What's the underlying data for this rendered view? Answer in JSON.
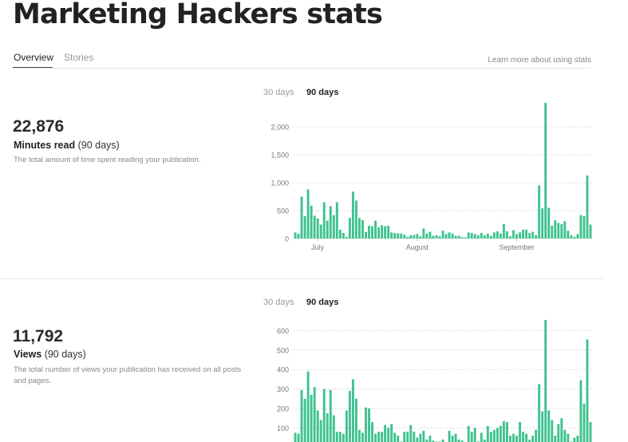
{
  "page": {
    "title": "Marketing Hackers stats"
  },
  "tabs": {
    "overview": "Overview",
    "stories": "Stories",
    "active": "Overview"
  },
  "learn_more": "Learn more about using stats",
  "range_options": {
    "d30": "30 days",
    "d90": "90 days",
    "selected": "90 days"
  },
  "colors": {
    "bar": "#3ec28f",
    "grid": "#d0d0d0",
    "axis_text": "#777777"
  },
  "sections": {
    "minutes": {
      "value": "22,876",
      "label": "Minutes read",
      "period": " (90 days)",
      "description": "The total amount of time spent reading your publication."
    },
    "views": {
      "value": "11,792",
      "label": "Views",
      "period": " (90 days)",
      "description": "The total number of views your publication has received on all posts and pages."
    }
  },
  "chart_data": [
    {
      "type": "bar",
      "title": "",
      "xlabel": "",
      "ylabel": "",
      "ylim": [
        0,
        2400
      ],
      "yticks": [
        0,
        500,
        1000,
        1500,
        2000
      ],
      "ytick_labels": [
        "0",
        "500",
        "1,000",
        "1,500",
        "2,000"
      ],
      "month_labels": [
        {
          "label": "July",
          "day_index": 7
        },
        {
          "label": "August",
          "day_index": 38
        },
        {
          "label": "September",
          "day_index": 69
        }
      ],
      "grid": true,
      "values": [
        110,
        85,
        750,
        400,
        880,
        590,
        410,
        360,
        250,
        650,
        320,
        580,
        420,
        650,
        160,
        100,
        30,
        370,
        840,
        680,
        370,
        330,
        120,
        230,
        220,
        320,
        200,
        240,
        220,
        230,
        110,
        100,
        95,
        90,
        70,
        30,
        60,
        65,
        80,
        40,
        180,
        90,
        120,
        50,
        60,
        40,
        140,
        80,
        110,
        90,
        50,
        50,
        25,
        20,
        110,
        100,
        80,
        60,
        100,
        60,
        90,
        50,
        110,
        130,
        90,
        260,
        130,
        40,
        150,
        80,
        110,
        160,
        160,
        100,
        120,
        60,
        950,
        540,
        2430,
        550,
        230,
        330,
        280,
        260,
        310,
        140,
        60,
        30,
        80,
        420,
        400,
        1130,
        250
      ]
    },
    {
      "type": "bar",
      "title": "",
      "xlabel": "",
      "ylabel": "",
      "ylim": [
        0,
        680
      ],
      "yticks": [
        100,
        200,
        300,
        400,
        500,
        600
      ],
      "ytick_labels": [
        "100",
        "200",
        "300",
        "400",
        "500",
        "600"
      ],
      "grid": true,
      "values": [
        75,
        70,
        295,
        250,
        390,
        270,
        310,
        190,
        140,
        300,
        175,
        295,
        165,
        80,
        80,
        70,
        190,
        290,
        350,
        250,
        90,
        75,
        205,
        200,
        130,
        70,
        80,
        80,
        115,
        100,
        120,
        75,
        60,
        30,
        80,
        80,
        115,
        80,
        50,
        70,
        85,
        40,
        60,
        35,
        30,
        30,
        40,
        25,
        85,
        60,
        70,
        40,
        35,
        20,
        110,
        80,
        100,
        30,
        75,
        40,
        110,
        80,
        90,
        100,
        110,
        135,
        130,
        60,
        70,
        60,
        130,
        80,
        70,
        40,
        60,
        90,
        325,
        185,
        655,
        190,
        140,
        60,
        120,
        150,
        90,
        70,
        30,
        50,
        60,
        345,
        225,
        555,
        130
      ]
    }
  ]
}
